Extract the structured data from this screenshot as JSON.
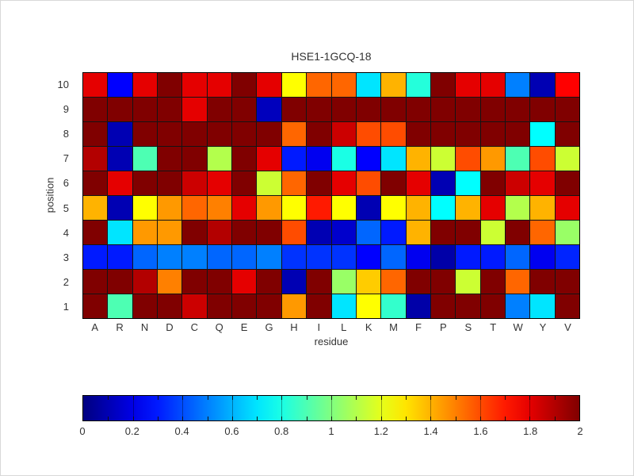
{
  "chart_data": {
    "type": "heatmap",
    "title": "HSE1-1GCQ-18",
    "xlabel": "residue",
    "ylabel": "position",
    "columns": [
      "A",
      "R",
      "N",
      "D",
      "C",
      "Q",
      "E",
      "G",
      "H",
      "I",
      "L",
      "K",
      "M",
      "F",
      "P",
      "S",
      "T",
      "W",
      "Y",
      "V"
    ],
    "rows": [
      "10",
      "9",
      "8",
      "7",
      "6",
      "5",
      "4",
      "3",
      "2",
      "1"
    ],
    "values": [
      [
        1.8,
        0.25,
        1.8,
        2.0,
        1.8,
        1.8,
        2.0,
        1.8,
        1.25,
        1.55,
        1.55,
        0.7,
        1.4,
        0.82,
        2.0,
        1.8,
        1.8,
        0.5,
        0.1,
        1.75
      ],
      [
        2.0,
        2.0,
        2.0,
        2.0,
        1.8,
        2.0,
        2.0,
        0.12,
        2.0,
        2.0,
        2.0,
        2.0,
        2.0,
        2.0,
        2.0,
        2.0,
        2.0,
        2.0,
        2.0,
        2.0
      ],
      [
        2.0,
        0.1,
        2.0,
        2.0,
        2.0,
        2.0,
        2.0,
        2.0,
        1.55,
        2.0,
        1.85,
        1.6,
        1.6,
        2.0,
        2.0,
        2.0,
        2.0,
        2.0,
        0.75,
        2.0
      ],
      [
        1.9,
        0.1,
        0.9,
        2.0,
        2.0,
        1.1,
        2.0,
        1.8,
        0.3,
        0.22,
        0.8,
        0.25,
        0.7,
        1.4,
        1.15,
        1.6,
        1.45,
        0.9,
        1.6,
        1.15
      ],
      [
        2.0,
        1.8,
        2.0,
        2.0,
        1.85,
        1.8,
        2.0,
        1.15,
        1.55,
        2.0,
        1.8,
        1.6,
        2.0,
        1.8,
        0.1,
        0.75,
        2.0,
        1.85,
        1.8,
        2.0
      ],
      [
        1.4,
        0.1,
        1.25,
        1.45,
        1.55,
        1.5,
        1.8,
        1.45,
        1.25,
        1.7,
        1.25,
        0.1,
        1.25,
        1.4,
        0.75,
        1.4,
        1.8,
        1.1,
        1.4,
        1.8
      ],
      [
        2.0,
        0.7,
        1.45,
        1.45,
        2.0,
        1.9,
        2.0,
        2.0,
        1.6,
        0.1,
        0.15,
        0.45,
        0.3,
        1.4,
        2.0,
        2.0,
        1.15,
        2.0,
        1.55,
        1.05
      ],
      [
        0.3,
        0.3,
        0.45,
        0.5,
        0.5,
        0.45,
        0.45,
        0.5,
        0.35,
        0.35,
        0.35,
        0.25,
        0.45,
        0.22,
        0.08,
        0.3,
        0.3,
        0.45,
        0.22,
        0.32
      ],
      [
        2.0,
        2.0,
        1.9,
        1.5,
        2.0,
        2.0,
        1.8,
        2.0,
        0.1,
        2.0,
        1.05,
        1.35,
        1.55,
        2.0,
        2.0,
        1.15,
        2.0,
        1.55,
        2.0,
        2.0
      ],
      [
        2.0,
        0.9,
        2.0,
        2.0,
        1.85,
        2.0,
        2.0,
        2.0,
        1.45,
        2.0,
        0.7,
        1.25,
        0.85,
        0.08,
        2.0,
        2.0,
        2.0,
        0.5,
        0.7,
        2.0
      ]
    ],
    "value_range": [
      0,
      2
    ],
    "colormap": "jet",
    "grid_lines": true,
    "colorbar": {
      "orientation": "horizontal",
      "position": "bottom",
      "tick_values": [
        0,
        0.2,
        0.4,
        0.6,
        0.8,
        1,
        1.2,
        1.4,
        1.6,
        1.8,
        2
      ],
      "tick_labels": [
        "0",
        "0.2",
        "0.4",
        "0.6",
        "0.8",
        "1",
        "1.2",
        "1.4",
        "1.6",
        "1.8",
        "2"
      ],
      "minor_tick_step": 0.1
    }
  }
}
